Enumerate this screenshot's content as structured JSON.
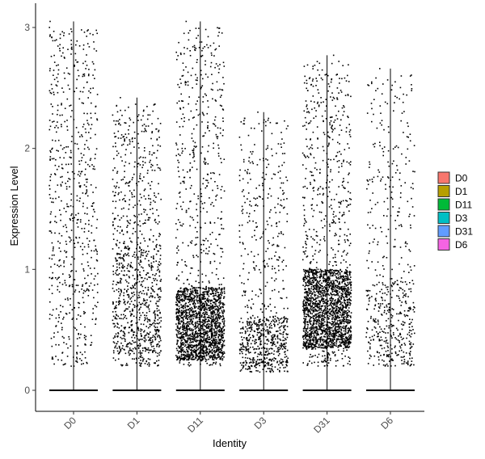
{
  "chart_data": {
    "type": "scatter",
    "subtype": "violin-jitter",
    "xlabel": "Identity",
    "ylabel": "Expression Level",
    "categories": [
      "D0",
      "D1",
      "D11",
      "D3",
      "D31",
      "D6"
    ],
    "ylim": [
      -0.18,
      3.22
    ],
    "yticks": [
      0,
      1,
      2,
      3
    ],
    "grid": false,
    "legend_position": "right",
    "legend": [
      {
        "label": "D0",
        "color": "#F8766D"
      },
      {
        "label": "D1",
        "color": "#B79F00"
      },
      {
        "label": "D11",
        "color": "#00BA38"
      },
      {
        "label": "D3",
        "color": "#00BFC4"
      },
      {
        "label": "D31",
        "color": "#619CFF"
      },
      {
        "label": "D6",
        "color": "#F564E3"
      }
    ],
    "series": [
      {
        "category": "D0",
        "max": 3.05,
        "n_nonzero": 650,
        "dense_range": [
          0.3,
          2.5
        ],
        "dense_frac": 0.0
      },
      {
        "category": "D1",
        "max": 2.42,
        "n_nonzero": 1050,
        "dense_range": [
          0.3,
          1.2
        ],
        "dense_frac": 0.35
      },
      {
        "category": "D11",
        "max": 3.05,
        "n_nonzero": 2100,
        "dense_range": [
          0.25,
          0.85
        ],
        "dense_frac": 0.7
      },
      {
        "category": "D3",
        "max": 2.3,
        "n_nonzero": 800,
        "dense_range": [
          0.15,
          0.6
        ],
        "dense_frac": 0.5
      },
      {
        "category": "D31",
        "max": 2.77,
        "n_nonzero": 2300,
        "dense_range": [
          0.35,
          1.0
        ],
        "dense_frac": 0.7
      },
      {
        "category": "D6",
        "max": 2.66,
        "n_nonzero": 550,
        "dense_range": [
          0.2,
          0.9
        ],
        "dense_frac": 0.4
      }
    ]
  }
}
